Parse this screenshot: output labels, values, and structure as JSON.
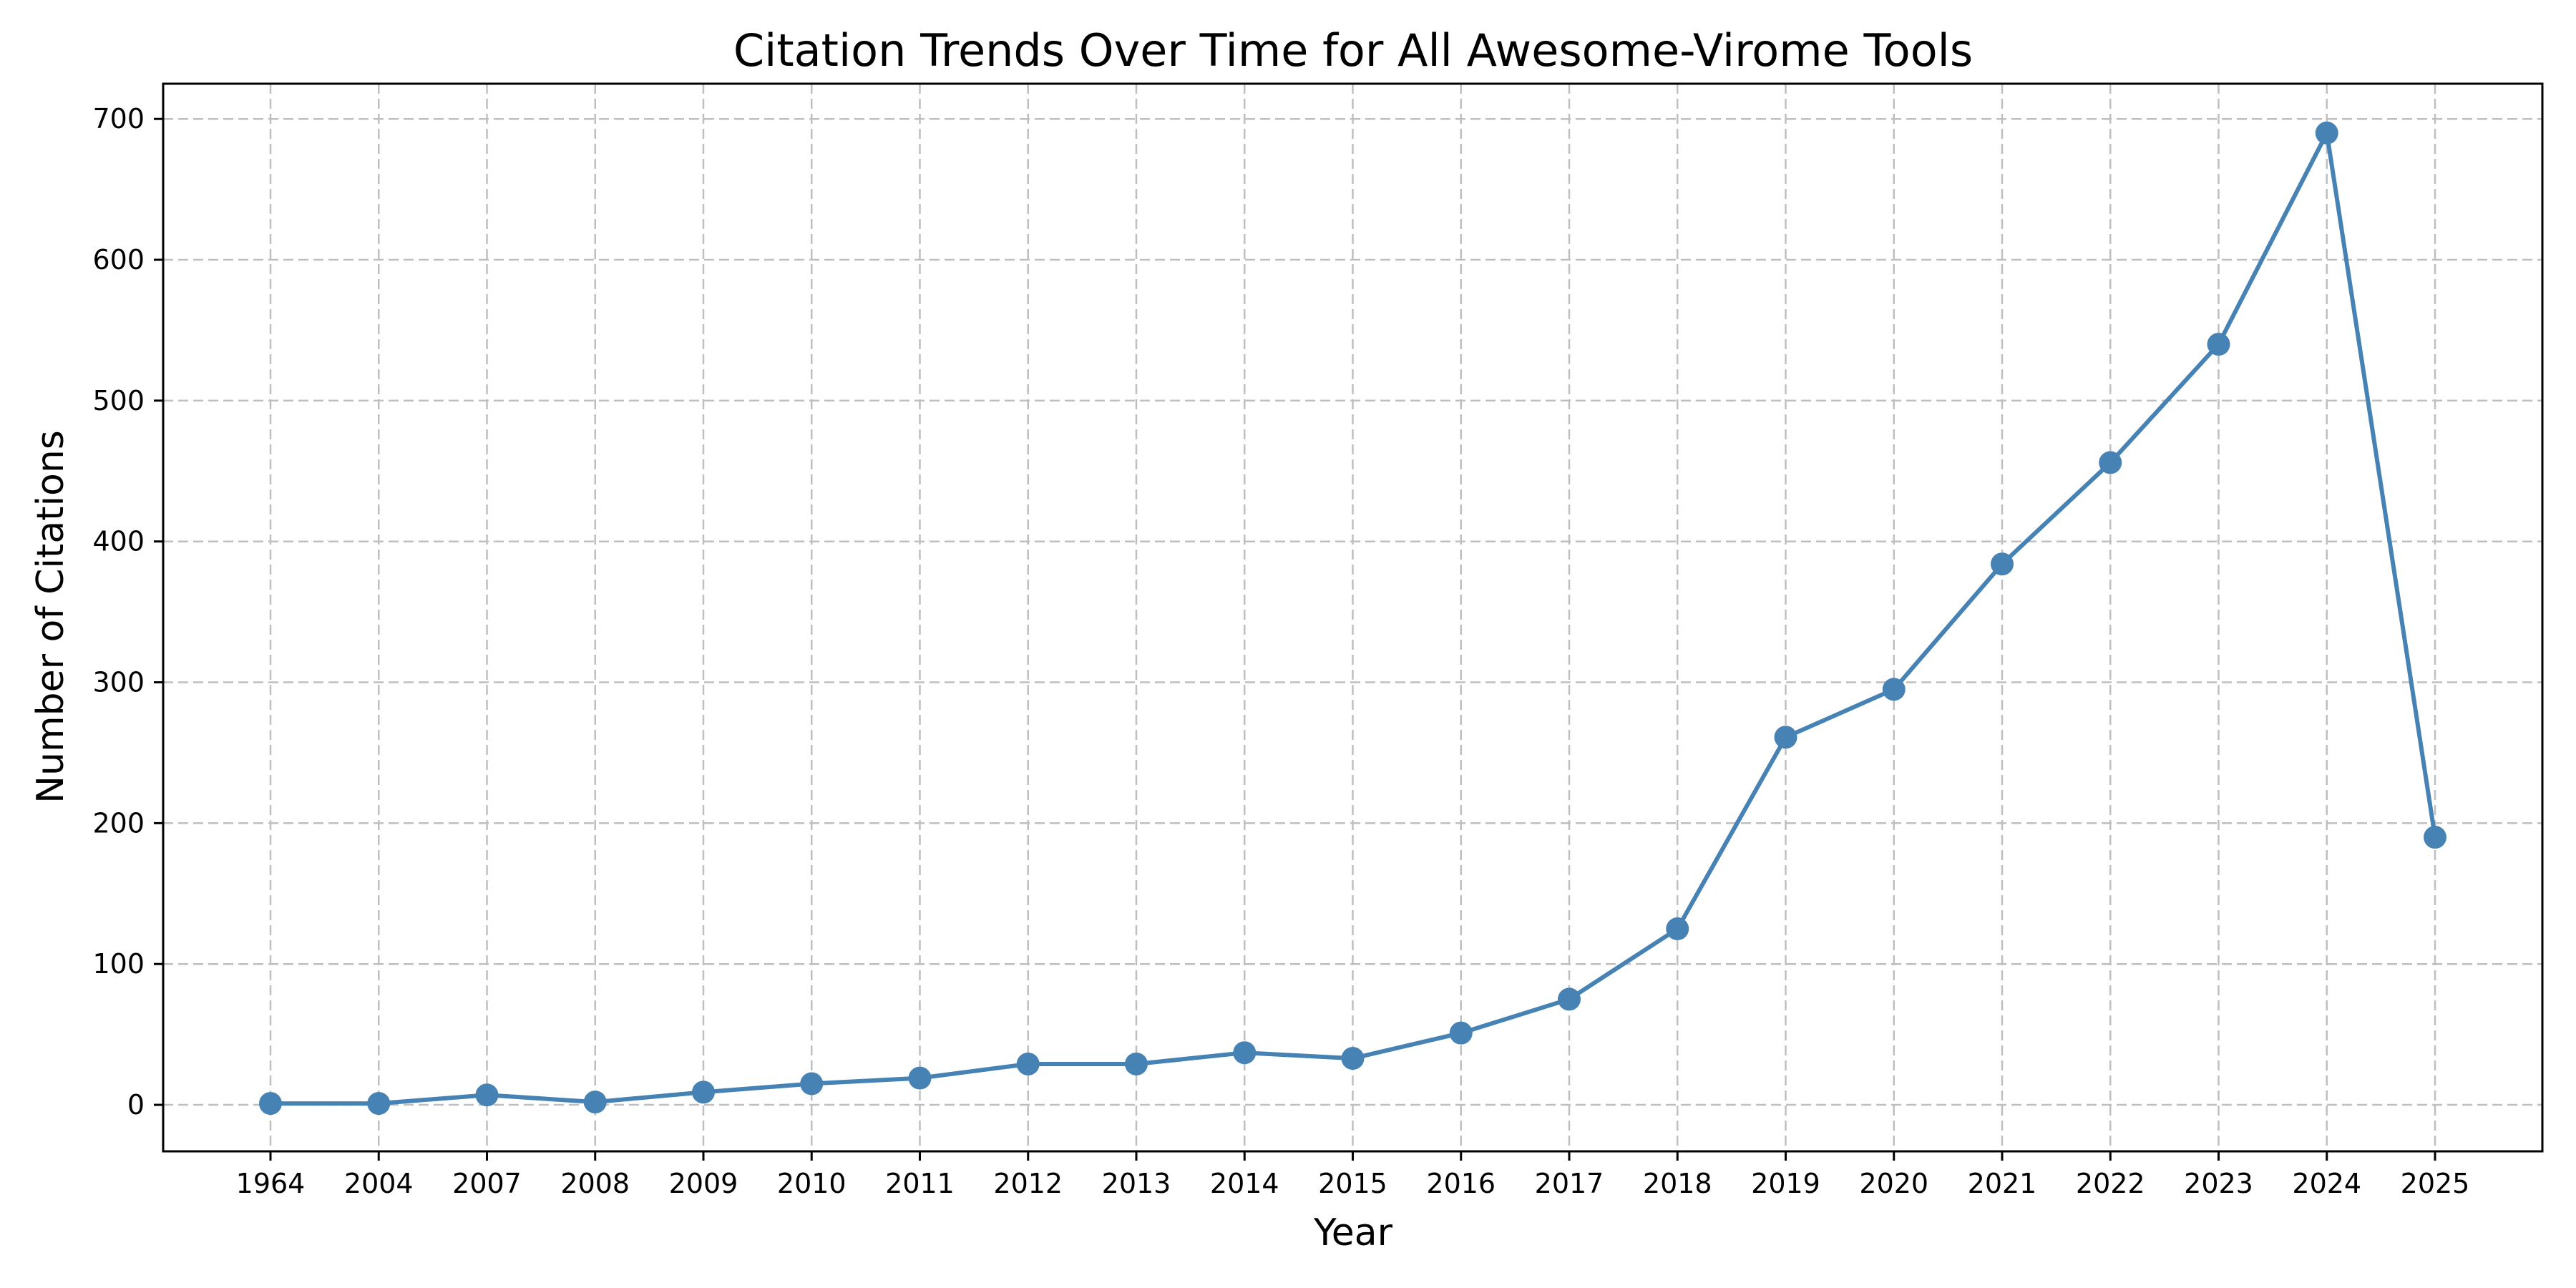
{
  "chart_data": {
    "type": "line",
    "title": "Citation Trends Over Time for All Awesome-Virome Tools",
    "xlabel": "Year",
    "ylabel": "Number of Citations",
    "categories": [
      "1964",
      "2004",
      "2007",
      "2008",
      "2009",
      "2010",
      "2011",
      "2012",
      "2013",
      "2014",
      "2015",
      "2016",
      "2017",
      "2018",
      "2019",
      "2020",
      "2021",
      "2022",
      "2023",
      "2024",
      "2025"
    ],
    "series": [
      {
        "values": [
          1,
          1,
          7,
          2,
          9,
          15,
          19,
          29,
          29,
          37,
          33,
          51,
          75,
          125,
          261,
          295,
          384,
          456,
          540,
          690,
          190
        ]
      }
    ],
    "yticks": [
      0,
      100,
      200,
      300,
      400,
      500,
      600,
      700
    ],
    "ylim": [
      -33,
      725
    ],
    "grid": true,
    "line_color": "#4682b4",
    "marker": "circle"
  }
}
